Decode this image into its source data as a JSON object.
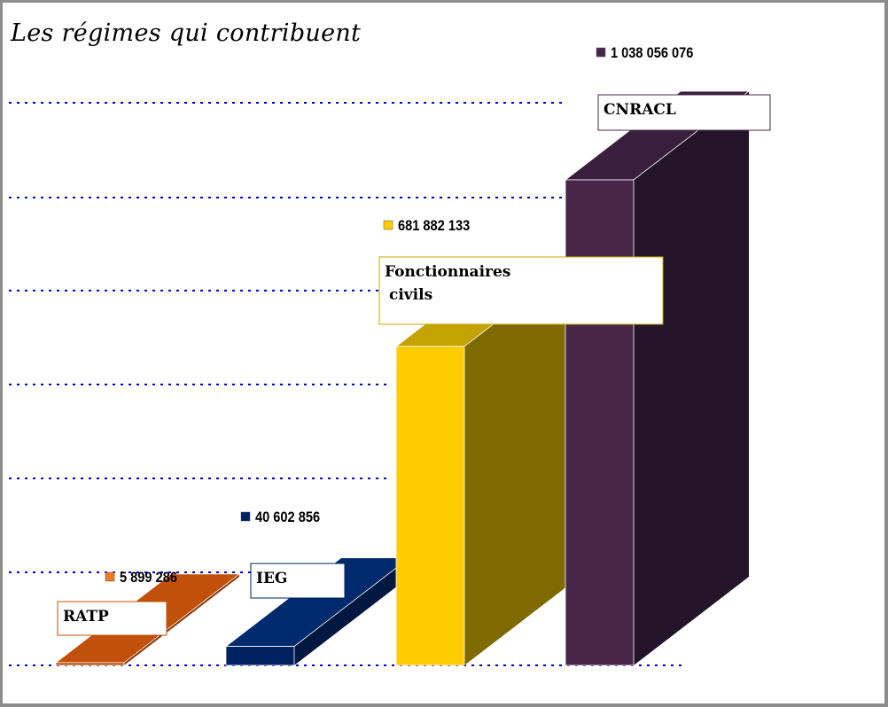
{
  "title": "Les régimes qui contribuent",
  "chart_data": {
    "type": "bar",
    "title": "Les régimes qui contribuent",
    "xlabel": "",
    "ylabel": "",
    "grid": true,
    "legend": "none",
    "categories": [
      "RATP",
      "IEG",
      "Fonctionnaires civils",
      "CNRACL"
    ],
    "values": [
      5899286,
      40602856,
      681882133,
      1038056076
    ],
    "value_labels": [
      "5 899 286",
      "40 602 856",
      "681 882 133",
      "1 038 056 076"
    ],
    "label_lines": [
      [
        "RATP"
      ],
      [
        "IEG"
      ],
      [
        "Fonctionnaires",
        "civils"
      ],
      [
        "CNRACL"
      ]
    ],
    "colors": {
      "front": [
        "#c0500a",
        "#002060",
        "#ffcc00",
        "#47264a"
      ],
      "top": [
        "#c0500a",
        "#002a6e",
        "#c4a300",
        "#3a1e3d"
      ],
      "side": [
        "#8a3a08",
        "#001840",
        "#7f6a00",
        "#24142a"
      ],
      "marker": [
        "#ee7a22",
        "#002060",
        "#ffcc00",
        "#47264a"
      ],
      "label_border": [
        "#c0500a",
        "#002060",
        "#c8a500",
        "#47264a"
      ],
      "grid": "#0000cc"
    }
  }
}
